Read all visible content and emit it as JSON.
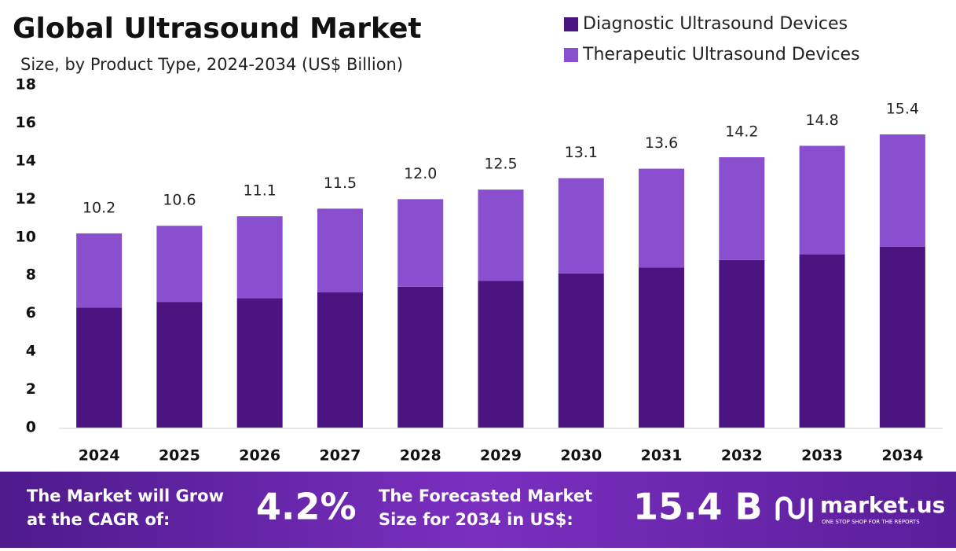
{
  "chart_data": {
    "type": "stacked_bar",
    "title": "Global Ultrasound Market",
    "subtitle": "Size, by Product Type, 2024-2034 (US$ Billion)",
    "categories": [
      "2024",
      "2025",
      "2026",
      "2027",
      "2028",
      "2029",
      "2030",
      "2031",
      "2032",
      "2033",
      "2034"
    ],
    "series": [
      {
        "name": "Diagnostic Ultrasound Devices",
        "color": "#4b1480",
        "values": [
          6.3,
          6.6,
          6.8,
          7.1,
          7.4,
          7.7,
          8.1,
          8.4,
          8.8,
          9.1,
          9.5
        ]
      },
      {
        "name": "Therapeutic Ultrasound Devices",
        "color": "#8a4fcf",
        "values": [
          3.9,
          4.0,
          4.3,
          4.4,
          4.6,
          4.8,
          5.0,
          5.2,
          5.4,
          5.7,
          5.9
        ]
      }
    ],
    "total_labels": [
      "10.2",
      "10.6",
      "11.1",
      "11.5",
      "12.0",
      "12.5",
      "13.1",
      "13.6",
      "14.2",
      "14.8",
      "15.4"
    ],
    "ylim": [
      0,
      18
    ],
    "yticks": [
      0,
      2,
      4,
      6,
      8,
      10,
      12,
      14,
      16,
      18
    ],
    "grid": false
  },
  "footer": {
    "cagr_text": [
      "The Market will Grow",
      "at the CAGR of:"
    ],
    "cagr": "4.2%",
    "forecast_text": [
      "The Forecasted Market",
      "Size for 2034 in US$:"
    ],
    "forecast": "15.4 B",
    "brand": "market.us",
    "tagline": "ONE STOP SHOP FOR THE REPORTS"
  }
}
